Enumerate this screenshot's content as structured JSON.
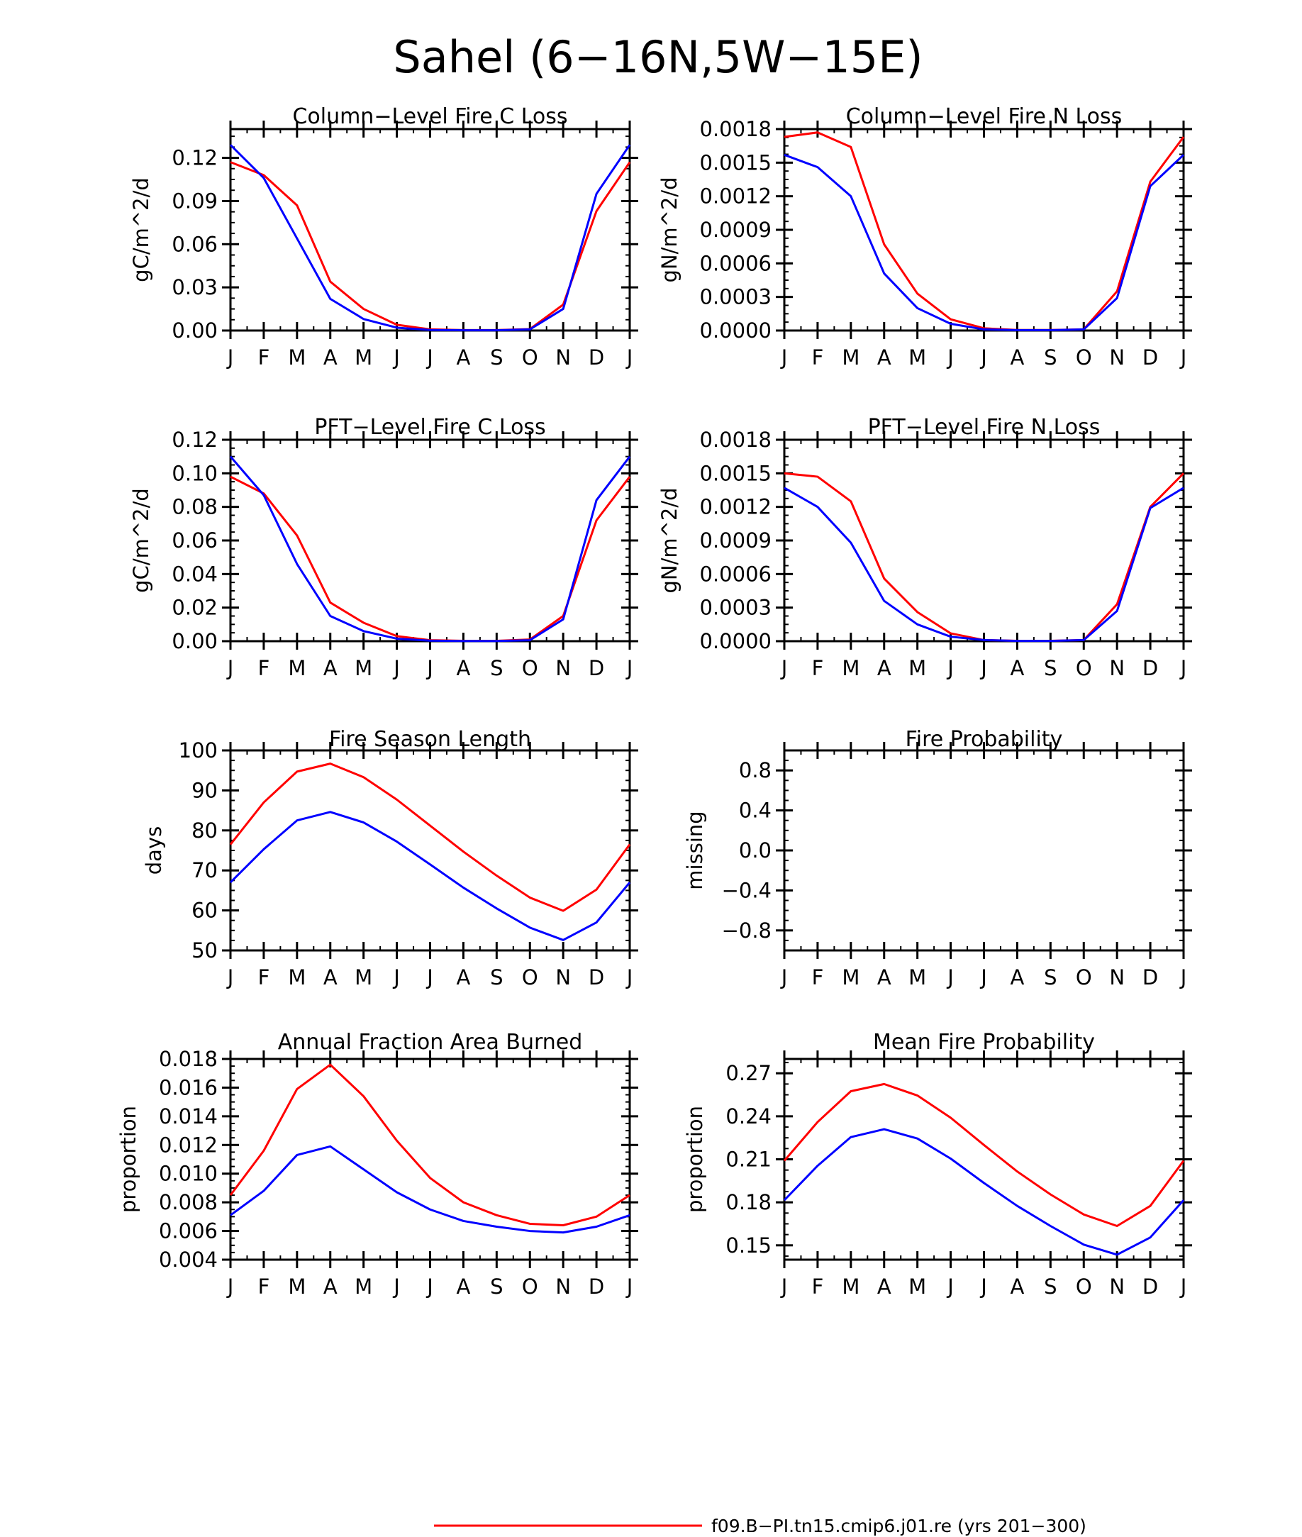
{
  "main_title": "Sahel (6−16N,5W−15E)",
  "months": [
    "J",
    "F",
    "M",
    "A",
    "M",
    "J",
    "J",
    "A",
    "S",
    "O",
    "N",
    "D",
    "J"
  ],
  "colors": {
    "red": "#ff0000",
    "blue": "#0000ff",
    "axis": "#000000"
  },
  "legend": [
    {
      "label": "f09.B−PI.tn15.cmip6.j01.re (yrs 201−300)",
      "color": "#ff0000"
    }
  ],
  "chart_data": [
    {
      "type": "line",
      "title": "Column−Level Fire C Loss",
      "ylabel": "gC/m^2/d",
      "ylim": [
        0,
        0.14
      ],
      "yticks": [
        0,
        0.03,
        0.06,
        0.09,
        0.12
      ],
      "ytick_labels": [
        "0.00",
        "0.03",
        "0.06",
        "0.09",
        "0.12"
      ],
      "categories": [
        "J",
        "F",
        "M",
        "A",
        "M",
        "J",
        "J",
        "A",
        "S",
        "O",
        "N",
        "D",
        "J"
      ],
      "series": [
        {
          "color": "#ff0000",
          "values": [
            0.117,
            0.108,
            0.087,
            0.034,
            0.015,
            0.004,
            0.0008,
            0.0003,
            0.0003,
            0.001,
            0.018,
            0.083,
            0.117
          ]
        },
        {
          "color": "#0000ff",
          "values": [
            0.129,
            0.106,
            0.064,
            0.022,
            0.008,
            0.002,
            0.0004,
            0.0002,
            0.0002,
            0.0008,
            0.015,
            0.095,
            0.129
          ]
        }
      ]
    },
    {
      "type": "line",
      "title": "Column−Level Fire N Loss",
      "ylabel": "gN/m^2/d",
      "ylim": [
        0,
        0.0018
      ],
      "yticks": [
        0,
        0.0003,
        0.0006,
        0.0009,
        0.0012,
        0.0015,
        0.0018
      ],
      "ytick_labels": [
        "0.0000",
        "0.0003",
        "0.0006",
        "0.0009",
        "0.0012",
        "0.0015",
        "0.0018"
      ],
      "categories": [
        "J",
        "F",
        "M",
        "A",
        "M",
        "J",
        "J",
        "A",
        "S",
        "O",
        "N",
        "D",
        "J"
      ],
      "series": [
        {
          "color": "#ff0000",
          "values": [
            0.00173,
            0.00177,
            0.00164,
            0.00077,
            0.00033,
            0.0001,
            2e-05,
            5e-06,
            5e-06,
            1e-05,
            0.00035,
            0.00133,
            0.00173
          ]
        },
        {
          "color": "#0000ff",
          "values": [
            0.00157,
            0.00146,
            0.0012,
            0.00051,
            0.0002,
            6e-05,
            1e-05,
            3e-06,
            3e-06,
            1e-05,
            0.00029,
            0.00129,
            0.00157
          ]
        }
      ]
    },
    {
      "type": "line",
      "title": "PFT−Level Fire C Loss",
      "ylabel": "gC/m^2/d",
      "ylim": [
        0,
        0.12
      ],
      "yticks": [
        0,
        0.02,
        0.04,
        0.06,
        0.08,
        0.1,
        0.12
      ],
      "ytick_labels": [
        "0.00",
        "0.02",
        "0.04",
        "0.06",
        "0.08",
        "0.10",
        "0.12"
      ],
      "categories": [
        "J",
        "F",
        "M",
        "A",
        "M",
        "J",
        "J",
        "A",
        "S",
        "O",
        "N",
        "D",
        "J"
      ],
      "series": [
        {
          "color": "#ff0000",
          "values": [
            0.098,
            0.088,
            0.063,
            0.023,
            0.011,
            0.003,
            0.0006,
            0.0002,
            0.0002,
            0.001,
            0.015,
            0.072,
            0.098
          ]
        },
        {
          "color": "#0000ff",
          "values": [
            0.11,
            0.087,
            0.046,
            0.015,
            0.006,
            0.0015,
            0.0003,
            0.0001,
            0.0001,
            0.0006,
            0.013,
            0.084,
            0.11
          ]
        }
      ]
    },
    {
      "type": "line",
      "title": "PFT−Level Fire N Loss",
      "ylabel": "gN/m^2/d",
      "ylim": [
        0,
        0.0018
      ],
      "yticks": [
        0,
        0.0003,
        0.0006,
        0.0009,
        0.0012,
        0.0015,
        0.0018
      ],
      "ytick_labels": [
        "0.0000",
        "0.0003",
        "0.0006",
        "0.0009",
        "0.0012",
        "0.0015",
        "0.0018"
      ],
      "categories": [
        "J",
        "F",
        "M",
        "A",
        "M",
        "J",
        "J",
        "A",
        "S",
        "O",
        "N",
        "D",
        "J"
      ],
      "series": [
        {
          "color": "#ff0000",
          "values": [
            0.0015,
            0.00147,
            0.00125,
            0.00056,
            0.00026,
            7e-05,
            1e-05,
            3e-06,
            3e-06,
            1e-05,
            0.00033,
            0.0012,
            0.0015
          ]
        },
        {
          "color": "#0000ff",
          "values": [
            0.00137,
            0.0012,
            0.00088,
            0.00036,
            0.00015,
            4e-05,
            1e-05,
            2e-06,
            2e-06,
            1e-05,
            0.00027,
            0.00119,
            0.00137
          ]
        }
      ]
    },
    {
      "type": "line",
      "title": "Fire Season Length",
      "ylabel": "days",
      "ylim": [
        50,
        100
      ],
      "yticks": [
        50,
        60,
        70,
        80,
        90,
        100
      ],
      "ytick_labels": [
        "50",
        "60",
        "70",
        "80",
        "90",
        "100"
      ],
      "categories": [
        "J",
        "F",
        "M",
        "A",
        "M",
        "J",
        "J",
        "A",
        "S",
        "O",
        "N",
        "D",
        "J"
      ],
      "series": [
        {
          "color": "#ff0000",
          "values": [
            76.5,
            87,
            94.7,
            96.7,
            93.3,
            87.7,
            81.2,
            74.7,
            68.7,
            63.2,
            59.9,
            65.2,
            76.5
          ]
        },
        {
          "color": "#0000ff",
          "values": [
            67,
            75.3,
            82.5,
            84.6,
            82,
            77.2,
            71.5,
            65.7,
            60.5,
            55.7,
            52.6,
            57,
            67
          ]
        }
      ]
    },
    {
      "type": "line",
      "title": "Fire Probability",
      "ylabel": "missing",
      "ylim": [
        -1,
        1
      ],
      "yticks": [
        -0.8,
        -0.4,
        0.0,
        0.4,
        0.8
      ],
      "ytick_labels": [
        "−0.8",
        "−0.4",
        "0.0",
        "0.4",
        "0.8"
      ],
      "categories": [
        "J",
        "F",
        "M",
        "A",
        "M",
        "J",
        "J",
        "A",
        "S",
        "O",
        "N",
        "D",
        "J"
      ],
      "series": []
    },
    {
      "type": "line",
      "title": "Annual Fraction Area Burned",
      "ylabel": "proportion",
      "ylim": [
        0.004,
        0.018
      ],
      "yticks": [
        0.004,
        0.006,
        0.008,
        0.01,
        0.012,
        0.014,
        0.016,
        0.018
      ],
      "ytick_labels": [
        "0.004",
        "0.006",
        "0.008",
        "0.010",
        "0.012",
        "0.014",
        "0.016",
        "0.018"
      ],
      "categories": [
        "J",
        "F",
        "M",
        "A",
        "M",
        "J",
        "J",
        "A",
        "S",
        "O",
        "N",
        "D",
        "J"
      ],
      "series": [
        {
          "color": "#ff0000",
          "values": [
            0.0085,
            0.0116,
            0.0159,
            0.0176,
            0.0154,
            0.0123,
            0.0097,
            0.008,
            0.0071,
            0.0065,
            0.0064,
            0.007,
            0.0085
          ]
        },
        {
          "color": "#0000ff",
          "values": [
            0.0071,
            0.0088,
            0.0113,
            0.0119,
            0.0103,
            0.0087,
            0.0075,
            0.0067,
            0.0063,
            0.006,
            0.0059,
            0.0063,
            0.0071
          ]
        }
      ]
    },
    {
      "type": "line",
      "title": "Mean Fire Probability",
      "ylabel": "proportion",
      "ylim": [
        0.14,
        0.28
      ],
      "yticks": [
        0.15,
        0.18,
        0.21,
        0.24,
        0.27
      ],
      "ytick_labels": [
        "0.15",
        "0.18",
        "0.21",
        "0.24",
        "0.27"
      ],
      "categories": [
        "J",
        "F",
        "M",
        "A",
        "M",
        "J",
        "J",
        "A",
        "S",
        "O",
        "N",
        "D",
        "J"
      ],
      "series": [
        {
          "color": "#ff0000",
          "values": [
            0.209,
            0.236,
            0.2575,
            0.2625,
            0.2545,
            0.239,
            0.22,
            0.2015,
            0.1855,
            0.1715,
            0.1635,
            0.1775,
            0.209
          ]
        },
        {
          "color": "#0000ff",
          "values": [
            0.1815,
            0.2055,
            0.2255,
            0.231,
            0.2245,
            0.2105,
            0.1935,
            0.1775,
            0.1635,
            0.1505,
            0.1435,
            0.1555,
            0.1815
          ]
        }
      ]
    }
  ]
}
